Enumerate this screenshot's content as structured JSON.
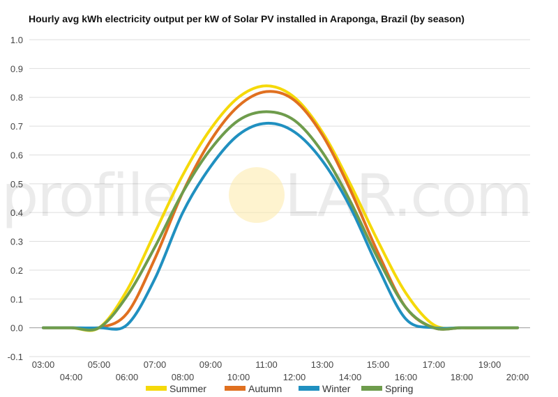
{
  "chart_data": {
    "type": "line",
    "title": "Hourly avg kWh electricity output per kW of Solar PV installed in Araponga, Brazil (by season)",
    "x": [
      "03:00",
      "04:00",
      "05:00",
      "06:00",
      "07:00",
      "08:00",
      "09:00",
      "10:00",
      "11:00",
      "12:00",
      "13:00",
      "14:00",
      "15:00",
      "16:00",
      "17:00",
      "18:00",
      "19:00",
      "20:00"
    ],
    "ylim": [
      -0.1,
      1.0
    ],
    "yticks": [
      -0.1,
      0.0,
      0.1,
      0.2,
      0.3,
      0.4,
      0.5,
      0.6,
      0.7,
      0.8,
      0.9,
      1.0
    ],
    "grid": true,
    "legend_position": "bottom",
    "series": [
      {
        "name": "Summer",
        "color": "#f5d90a",
        "values": [
          0.0,
          0.0,
          0.0,
          0.13,
          0.33,
          0.53,
          0.69,
          0.8,
          0.84,
          0.8,
          0.68,
          0.5,
          0.3,
          0.12,
          0.01,
          0.0,
          0.0,
          0.0
        ]
      },
      {
        "name": "Autumn",
        "color": "#e07020",
        "values": [
          0.0,
          0.0,
          0.0,
          0.05,
          0.24,
          0.47,
          0.65,
          0.77,
          0.82,
          0.79,
          0.67,
          0.48,
          0.26,
          0.07,
          0.0,
          0.0,
          0.0,
          0.0
        ]
      },
      {
        "name": "Winter",
        "color": "#2090c0",
        "values": [
          0.0,
          0.0,
          0.0,
          0.01,
          0.17,
          0.4,
          0.56,
          0.67,
          0.71,
          0.68,
          0.58,
          0.42,
          0.21,
          0.03,
          0.0,
          0.0,
          0.0,
          0.0
        ]
      },
      {
        "name": "Spring",
        "color": "#6e9c4c",
        "values": [
          0.0,
          0.0,
          0.0,
          0.11,
          0.28,
          0.47,
          0.62,
          0.72,
          0.75,
          0.72,
          0.61,
          0.44,
          0.24,
          0.07,
          0.0,
          0.0,
          0.0,
          0.0
        ]
      }
    ]
  },
  "watermark": {
    "text_left": "profile",
    "text_right": "LAR.com",
    "sun_color": "#fde9a8"
  }
}
